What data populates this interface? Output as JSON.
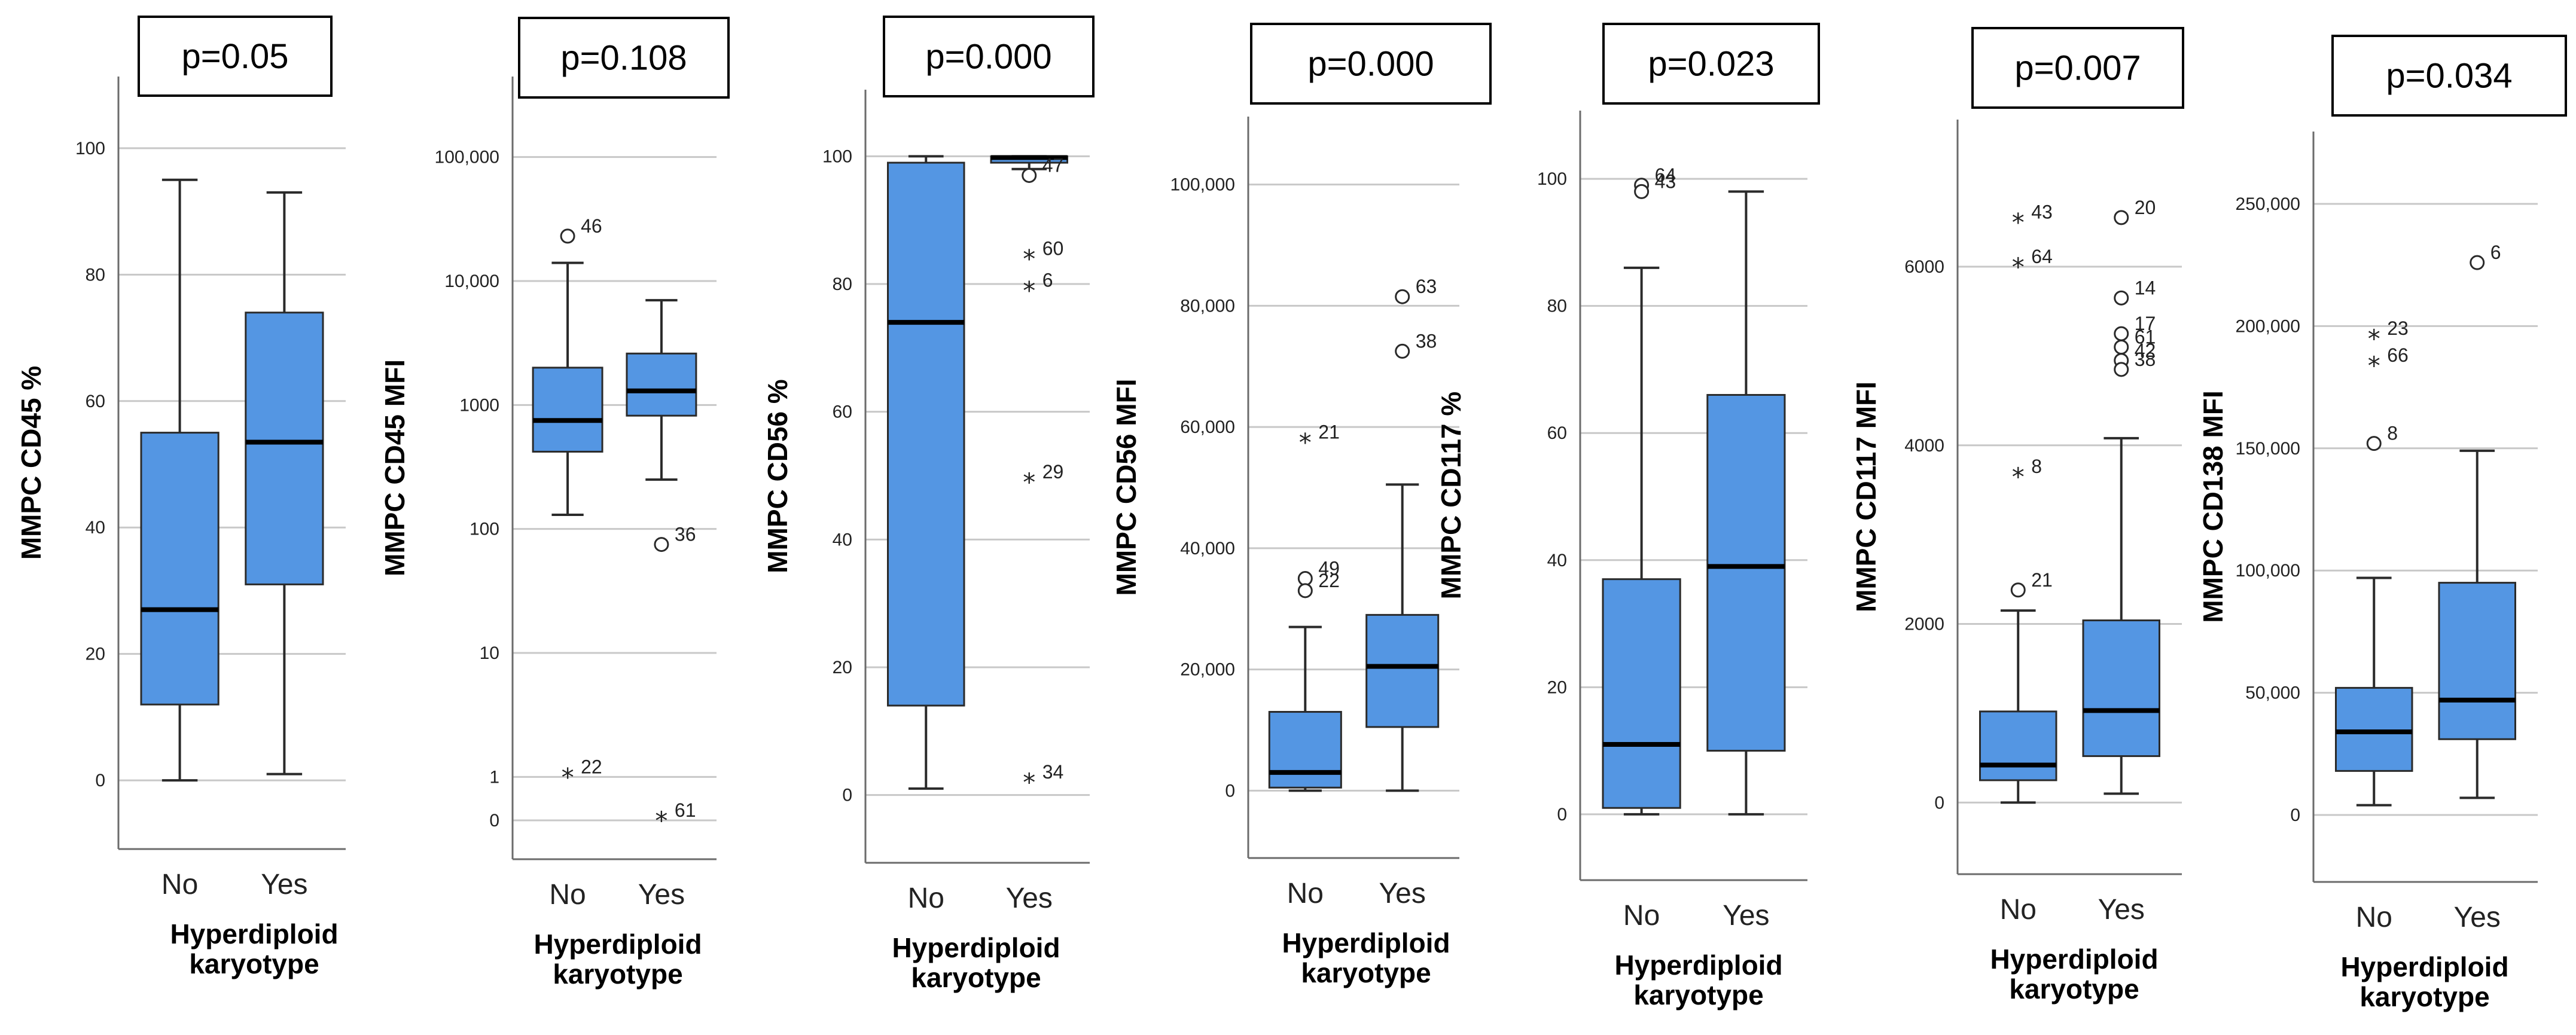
{
  "chart_data": [
    {
      "type": "box",
      "pvalue": "p=0.05",
      "ylabel": "MMPC CD45 %",
      "xlabel": [
        "Hyperdiploid",
        "karyotype"
      ],
      "categories": [
        "No",
        "Yes"
      ],
      "scale": "linear",
      "ylim": [
        -5,
        105
      ],
      "yticks": [
        0,
        20,
        40,
        60,
        80,
        100
      ],
      "ytick_labels": [
        "0",
        "20",
        "40",
        "60",
        "80",
        "100"
      ],
      "boxes": [
        {
          "min": 0,
          "q1": 12,
          "median": 27,
          "q3": 55,
          "max": 95
        },
        {
          "min": 1,
          "q1": 31,
          "median": 53.5,
          "q3": 74,
          "max": 93
        }
      ],
      "outliers": []
    },
    {
      "type": "box",
      "pvalue": "p=0.108",
      "ylabel": "MMPC CD45 MFI",
      "xlabel": [
        "Hyperdiploid",
        "karyotype"
      ],
      "categories": [
        "No",
        "Yes"
      ],
      "scale": "log",
      "ylim": [
        -0.35,
        5.35
      ],
      "yticks": [
        0,
        1,
        10,
        100,
        1000,
        10000,
        100000
      ],
      "ytick_labels": [
        "0",
        "1",
        "10",
        "100",
        "1000",
        "10,000",
        "100,000"
      ],
      "boxes": [
        {
          "min": 130,
          "q1": 420,
          "median": 750,
          "q3": 2000,
          "max": 14000
        },
        {
          "min": 250,
          "q1": 820,
          "median": 1300,
          "q3": 2600,
          "max": 7000
        }
      ],
      "outliers": [
        {
          "cat": 0,
          "value": 23000,
          "marker": "circle",
          "label": "46"
        },
        {
          "cat": 1,
          "value": 75,
          "marker": "circle",
          "label": "36"
        },
        {
          "cat": 0,
          "value": 1,
          "marker": "star",
          "label": "22"
        },
        {
          "cat": 1,
          "value": 0,
          "marker": "star",
          "label": "61"
        }
      ]
    },
    {
      "type": "box",
      "pvalue": "p=0.000",
      "ylabel": "MMPC CD56 %",
      "xlabel": [
        "Hyperdiploid",
        "karyotype"
      ],
      "categories": [
        "No",
        "Yes"
      ],
      "scale": "linear",
      "ylim": [
        -5,
        105
      ],
      "yticks": [
        0,
        20,
        40,
        60,
        80,
        100
      ],
      "ytick_labels": [
        "0",
        "20",
        "40",
        "60",
        "80",
        "100"
      ],
      "boxes": [
        {
          "min": 1,
          "q1": 14,
          "median": 74,
          "q3": 99,
          "max": 100
        },
        {
          "min": 98,
          "q1": 99,
          "median": 99.8,
          "q3": 100,
          "max": 100
        }
      ],
      "outliers": [
        {
          "cat": 1,
          "value": 97,
          "marker": "circle",
          "label": "47"
        },
        {
          "cat": 1,
          "value": 84,
          "marker": "star",
          "label": "60"
        },
        {
          "cat": 1,
          "value": 79,
          "marker": "star",
          "label": "6"
        },
        {
          "cat": 1,
          "value": 49,
          "marker": "star",
          "label": "29"
        },
        {
          "cat": 1,
          "value": 2,
          "marker": "star",
          "label": "34"
        }
      ]
    },
    {
      "type": "box",
      "pvalue": "p=0.000",
      "ylabel": "MMPC CD56 MFI",
      "xlabel": [
        "Hyperdiploid",
        "karyotype"
      ],
      "categories": [
        "No",
        "Yes"
      ],
      "scale": "linear",
      "ylim": [
        -5000,
        105000
      ],
      "yticks": [
        0,
        20000,
        40000,
        60000,
        80000,
        100000
      ],
      "ytick_labels": [
        "0",
        "20,000",
        "40,000",
        "60,000",
        "80,000",
        "100,000"
      ],
      "boxes": [
        {
          "min": 0,
          "q1": 500,
          "median": 3000,
          "q3": 13000,
          "max": 27000
        },
        {
          "min": 0,
          "q1": 10500,
          "median": 20500,
          "q3": 29000,
          "max": 50500
        }
      ],
      "outliers": [
        {
          "cat": 1,
          "value": 81500,
          "marker": "circle",
          "label": "63"
        },
        {
          "cat": 1,
          "value": 72500,
          "marker": "circle",
          "label": "38"
        },
        {
          "cat": 0,
          "value": 57500,
          "marker": "star",
          "label": "21"
        },
        {
          "cat": 0,
          "value": 35000,
          "marker": "circle",
          "label": "49"
        },
        {
          "cat": 0,
          "value": 33000,
          "marker": "circle",
          "label": "22"
        }
      ]
    },
    {
      "type": "box",
      "pvalue": "p=0.023",
      "ylabel": "MMPC CD117 %",
      "xlabel": [
        "Hyperdiploid",
        "karyotype"
      ],
      "categories": [
        "No",
        "Yes"
      ],
      "scale": "linear",
      "ylim": [
        -5,
        105
      ],
      "yticks": [
        0,
        20,
        40,
        60,
        80,
        100
      ],
      "ytick_labels": [
        "0",
        "20",
        "40",
        "60",
        "80",
        "100"
      ],
      "boxes": [
        {
          "min": 0,
          "q1": 1,
          "median": 11,
          "q3": 37,
          "max": 86
        },
        {
          "min": 0,
          "q1": 10,
          "median": 39,
          "q3": 66,
          "max": 98
        }
      ],
      "outliers": [
        {
          "cat": 0,
          "value": 99,
          "marker": "circle",
          "label": "64"
        },
        {
          "cat": 0,
          "value": 98,
          "marker": "circle",
          "label": "43"
        }
      ]
    },
    {
      "type": "box",
      "pvalue": "p=0.007",
      "ylabel": "MMPC CD117 MFI",
      "xlabel": [
        "Hyperdiploid",
        "karyotype"
      ],
      "categories": [
        "No",
        "Yes"
      ],
      "scale": "linear",
      "ylim": [
        -400,
        7500
      ],
      "yticks": [
        0,
        2000,
        4000,
        6000
      ],
      "ytick_labels": [
        "0",
        "2000",
        "4000",
        "6000"
      ],
      "boxes": [
        {
          "min": 0,
          "q1": 250,
          "median": 420,
          "q3": 1020,
          "max": 2150
        },
        {
          "min": 100,
          "q1": 520,
          "median": 1030,
          "q3": 2040,
          "max": 4080
        }
      ],
      "outliers": [
        {
          "cat": 0,
          "value": 6500,
          "marker": "star",
          "label": "43"
        },
        {
          "cat": 0,
          "value": 6000,
          "marker": "star",
          "label": "64"
        },
        {
          "cat": 0,
          "value": 3650,
          "marker": "star",
          "label": "8"
        },
        {
          "cat": 0,
          "value": 2380,
          "marker": "circle",
          "label": "21"
        },
        {
          "cat": 1,
          "value": 6550,
          "marker": "circle",
          "label": "20"
        },
        {
          "cat": 1,
          "value": 5650,
          "marker": "circle",
          "label": "14"
        },
        {
          "cat": 1,
          "value": 5250,
          "marker": "circle",
          "label": "17"
        },
        {
          "cat": 1,
          "value": 5100,
          "marker": "circle",
          "label": "61"
        },
        {
          "cat": 1,
          "value": 4950,
          "marker": "circle",
          "label": "42"
        },
        {
          "cat": 1,
          "value": 4850,
          "marker": "circle",
          "label": "38"
        }
      ]
    },
    {
      "type": "box",
      "pvalue": "p=0.034",
      "ylabel": "MMPC CD138 MFI",
      "xlabel": [
        "Hyperdiploid",
        "karyotype"
      ],
      "categories": [
        "No",
        "Yes"
      ],
      "scale": "linear",
      "ylim": [
        -12000,
        262000
      ],
      "yticks": [
        0,
        50000,
        100000,
        150000,
        200000,
        250000
      ],
      "ytick_labels": [
        "0",
        "50,000",
        "100,000",
        "150,000",
        "200,000",
        "250,000"
      ],
      "boxes": [
        {
          "min": 4000,
          "q1": 18000,
          "median": 34000,
          "q3": 52000,
          "max": 97000
        },
        {
          "min": 7000,
          "q1": 31000,
          "median": 47000,
          "q3": 95000,
          "max": 149000
        }
      ],
      "outliers": [
        {
          "cat": 1,
          "value": 226000,
          "marker": "circle",
          "label": "6"
        },
        {
          "cat": 0,
          "value": 195000,
          "marker": "star",
          "label": "23"
        },
        {
          "cat": 0,
          "value": 184000,
          "marker": "star",
          "label": "66"
        },
        {
          "cat": 0,
          "value": 152000,
          "marker": "circle",
          "label": "8"
        }
      ]
    }
  ],
  "colors": {
    "box_fill": "#5496e3",
    "box_stroke": "#2a2a2a",
    "grid": "#c8c8c8",
    "axis": "#6b6b6b",
    "text": "#222222"
  }
}
